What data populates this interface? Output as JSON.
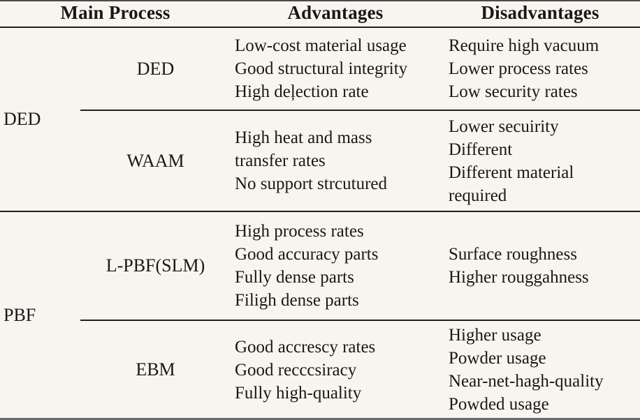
{
  "header": {
    "main_process": "Main Process",
    "advantages": "Advantages",
    "disadvantages": "Disadvantages"
  },
  "groups": [
    {
      "name": "DED",
      "rows": [
        {
          "process": "DED",
          "advantages": [
            "Low-cost material usage",
            "Good structural integrity",
            "High deļection rate"
          ],
          "disadvantages": [
            "Require high vacuum",
            "Lower process rates",
            "Low security rates"
          ]
        },
        {
          "process": "WAAM",
          "advantages": [
            "High heat and mass",
            "transfer rates",
            "No support strcutured"
          ],
          "disadvantages": [
            "Lower secuirity",
            "Different",
            "Different material",
            "required"
          ]
        }
      ]
    },
    {
      "name": "PBF",
      "rows": [
        {
          "process": "L-PBF(SLM)",
          "advantages": [
            "High process rates",
            "Good accuracy parts",
            "Fully dense parts",
            "Filigh dense parts"
          ],
          "disadvantages": [
            "Surface roughness",
            "Higher rouggahness"
          ]
        },
        {
          "process": "EBM",
          "advantages": [
            "Good accrescy rates",
            "Good recccsiracy",
            "Fully high-quality"
          ],
          "disadvantages": [
            "Higher usage",
            "Powder usage",
            "Near-net-hagh-quality",
            "Powded usage"
          ]
        }
      ]
    }
  ],
  "colors": {
    "background": "#f8f5ef",
    "text": "#181818",
    "rule": "#1d1d1d"
  }
}
